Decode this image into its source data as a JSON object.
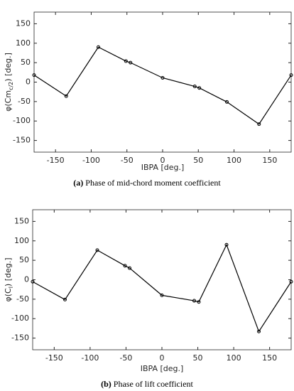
{
  "chart_data": [
    {
      "type": "line",
      "xlabel": "IBPA  [deg.]",
      "ylabel": "φ(Cm",
      "ylabel_sub": "c/2",
      "ylabel_end": ")  [deg.]",
      "caption_label": "(a)",
      "caption": "Phase of mid-chord moment coefficient",
      "x": [
        -180,
        -135,
        -90,
        -51.4,
        -45,
        0,
        45,
        51.4,
        90,
        135,
        180
      ],
      "series": [
        {
          "color": "#000000",
          "values": [
            18,
            -36,
            90,
            54,
            50,
            11,
            -11,
            -15,
            -51,
            -108,
            18
          ]
        }
      ],
      "xlim": [
        -180,
        180
      ],
      "ylim": [
        -180,
        180
      ],
      "xticks": [
        -150,
        -100,
        -50,
        0,
        50,
        100,
        150
      ],
      "yticks": [
        -150,
        -100,
        -50,
        0,
        50,
        100,
        150
      ],
      "grid": false
    },
    {
      "type": "line",
      "xlabel": "IBPA  [deg.]",
      "ylabel": "φ(C",
      "ylabel_sub": "l",
      "ylabel_end": ")  [deg.]",
      "caption_label": "(b)",
      "caption": "Phase of lift coefficient",
      "x": [
        -180,
        -135,
        -90,
        -51.4,
        -45,
        0,
        45,
        51.4,
        90,
        135,
        180
      ],
      "series": [
        {
          "color": "#000000",
          "values": [
            -5,
            -51,
            76,
            36,
            30,
            -40,
            -54,
            -57,
            90,
            -133,
            -5
          ]
        }
      ],
      "xlim": [
        -180,
        180
      ],
      "ylim": [
        -180,
        180
      ],
      "xticks": [
        -150,
        -100,
        -50,
        0,
        50,
        100,
        150
      ],
      "yticks": [
        -150,
        -100,
        -50,
        0,
        50,
        100,
        150
      ],
      "grid": false
    }
  ]
}
